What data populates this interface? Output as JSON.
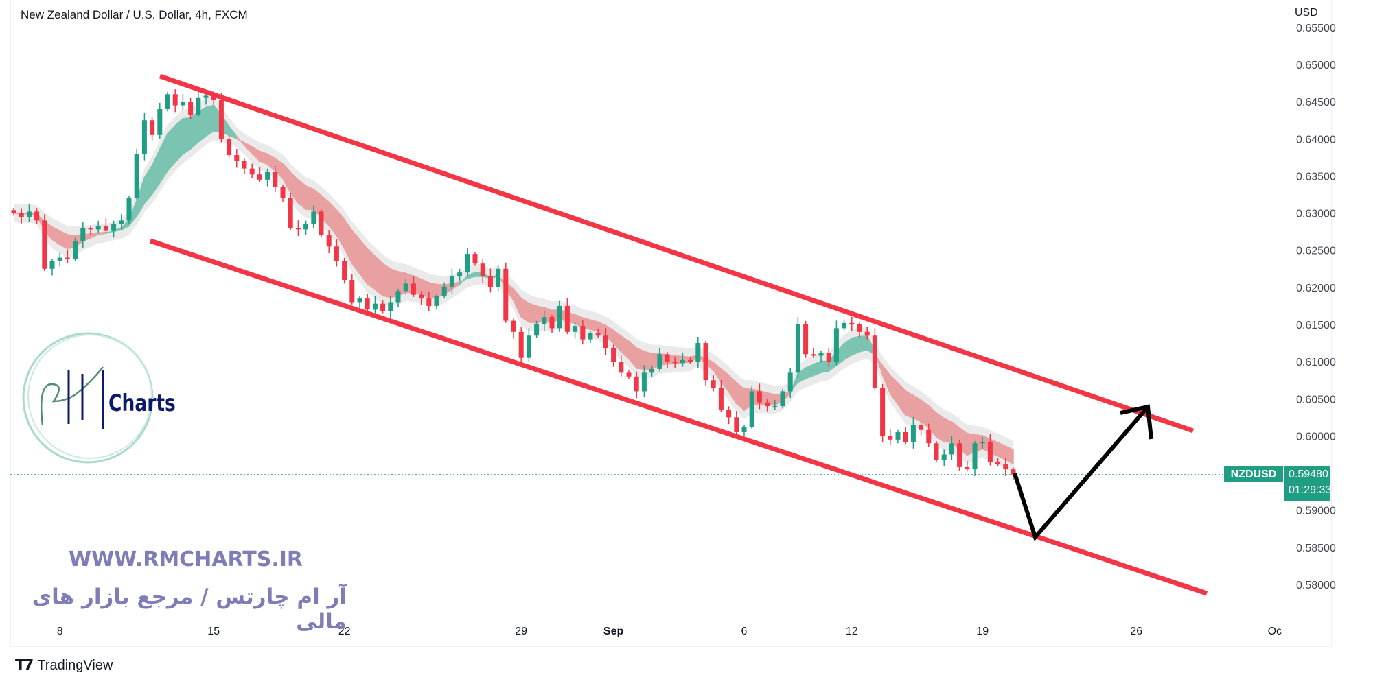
{
  "header": {
    "title": "New Zealand Dollar / U.S. Dollar, 4h, FXCM",
    "currency": "USD"
  },
  "footer": {
    "brand": "TradingView"
  },
  "watermark": {
    "logo_text": "Charts",
    "logo_letters": "RM",
    "url": "WWW.RMCHARTS.IR",
    "tagline": "آر ام چارتس / مرجع بازار های مالی"
  },
  "last_price": {
    "symbol": "NZDUSD",
    "price": "0.59480",
    "countdown": "01:29:33",
    "value": 0.5948
  },
  "colors": {
    "up": "#1f9e84",
    "down": "#f23645",
    "trendline": "#f23645",
    "arrow": "#000000",
    "price_tag": "#1f9e84"
  },
  "chart_data": {
    "type": "candlestick",
    "title": "New Zealand Dollar / U.S. Dollar, 4h, FXCM",
    "ylabel": "USD",
    "ylim": [
      0.5775,
      0.6555
    ],
    "y_ticks": [
      "0.65500",
      "0.65000",
      "0.64500",
      "0.64000",
      "0.63500",
      "0.63000",
      "0.62500",
      "0.62000",
      "0.61500",
      "0.61000",
      "0.60500",
      "0.60000",
      "0.59000",
      "0.58500",
      "0.58000"
    ],
    "x_ticks": [
      {
        "label": "8",
        "index": 6
      },
      {
        "label": "15",
        "index": 26
      },
      {
        "label": "22",
        "index": 43
      },
      {
        "label": "29",
        "index": 66
      },
      {
        "label": "Sep",
        "index": 78
      },
      {
        "label": "6",
        "index": 95
      },
      {
        "label": "12",
        "index": 109
      },
      {
        "label": "19",
        "index": 126
      },
      {
        "label": "26",
        "index": 146
      },
      {
        "label": "Oc",
        "index": 164
      }
    ],
    "close": [
      0.63,
      0.6295,
      0.6302,
      0.629,
      0.6225,
      0.6235,
      0.624,
      0.6238,
      0.6262,
      0.628,
      0.6278,
      0.6283,
      0.6276,
      0.6285,
      0.629,
      0.632,
      0.638,
      0.6425,
      0.6405,
      0.644,
      0.646,
      0.6445,
      0.645,
      0.6432,
      0.6455,
      0.6458,
      0.6452,
      0.64,
      0.6378,
      0.637,
      0.636,
      0.6352,
      0.6345,
      0.6355,
      0.6335,
      0.632,
      0.628,
      0.6278,
      0.6285,
      0.6302,
      0.627,
      0.6255,
      0.6235,
      0.621,
      0.618,
      0.6185,
      0.617,
      0.6178,
      0.6168,
      0.618,
      0.6195,
      0.6205,
      0.619,
      0.6185,
      0.6175,
      0.6188,
      0.62,
      0.6215,
      0.622,
      0.6245,
      0.6232,
      0.6215,
      0.62,
      0.6225,
      0.6155,
      0.614,
      0.6105,
      0.6135,
      0.615,
      0.616,
      0.6145,
      0.6175,
      0.614,
      0.6148,
      0.613,
      0.6138,
      0.6135,
      0.6118,
      0.61,
      0.6085,
      0.608,
      0.606,
      0.6085,
      0.609,
      0.611,
      0.61,
      0.6098,
      0.6102,
      0.61,
      0.6125,
      0.6075,
      0.6065,
      0.6035,
      0.6025,
      0.6005,
      0.6012,
      0.606,
      0.6045,
      0.604,
      0.604,
      0.606,
      0.6085,
      0.615,
      0.611,
      0.6108,
      0.6112,
      0.61,
      0.6145,
      0.6152,
      0.615,
      0.614,
      0.6135,
      0.6065,
      0.6,
      0.5995,
      0.6005,
      0.5992,
      0.6015,
      0.6008,
      0.599,
      0.5968,
      0.5975,
      0.599,
      0.5958,
      0.5955,
      0.599,
      0.5992,
      0.5965,
      0.5962,
      0.5955,
      0.5948
    ],
    "indicator": {
      "name": "MA ribbon",
      "fast": 6,
      "slow": 14
    }
  }
}
